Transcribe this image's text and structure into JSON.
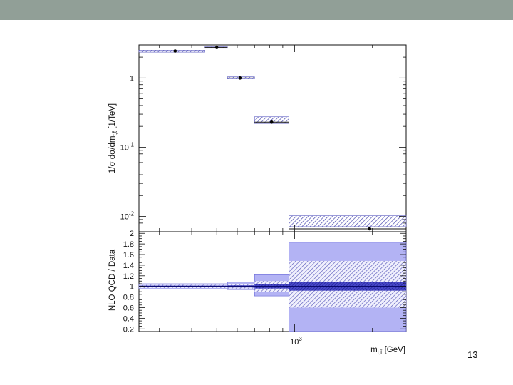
{
  "slide": {
    "number": "13"
  },
  "colors": {
    "header_bar": "#919f97",
    "band_fill": "#7777ee",
    "band_dark": "#1a1a8c",
    "hatch": "#4a4ab0"
  },
  "chart_data": [
    {
      "type": "scatter",
      "panel": "top",
      "xlabel_text": "m",
      "xlabel_sub": "t,t̄",
      "xlabel_unit": " [GeV]",
      "ylabel": "1/σ dσ/dm_{t,t̄} [1/TeV]",
      "ylabel_parts": {
        "pre": "1/σ dσ/dm",
        "sub": "t,t̄",
        "post": " [1/TeV]"
      },
      "xscale": "log",
      "xlim": [
        250,
        2700
      ],
      "yscale": "log",
      "ylim": [
        0.006,
        3.0
      ],
      "x_tick_labels": [
        {
          "value": 1000,
          "base": "10",
          "exp": "3"
        }
      ],
      "y_tick_labels": [
        {
          "value": 1,
          "base": "1",
          "exp": ""
        },
        {
          "value": 0.1,
          "base": "10",
          "exp": "-1"
        },
        {
          "value": 0.01,
          "base": "10",
          "exp": "-2"
        }
      ],
      "bins": [
        {
          "lo": 250,
          "hi": 450,
          "x": 345,
          "y": 2.45,
          "band": [
            2.36,
            2.52
          ]
        },
        {
          "lo": 450,
          "hi": 550,
          "x": 500,
          "y": 2.75,
          "band": [
            2.68,
            2.82
          ]
        },
        {
          "lo": 550,
          "hi": 700,
          "x": 615,
          "y": 1.0,
          "band": [
            0.97,
            1.04
          ]
        },
        {
          "lo": 700,
          "hi": 950,
          "x": 815,
          "y": 0.23,
          "band": [
            0.22,
            0.275
          ]
        },
        {
          "lo": 950,
          "hi": 2700,
          "x": 1950,
          "y": 0.0066,
          "band": [
            0.0071,
            0.0102
          ]
        }
      ]
    },
    {
      "type": "bar",
      "panel": "bottom",
      "ylabel": "NLO QCD / Data",
      "ylim": [
        0.15,
        2.03
      ],
      "y_ticks": [
        "0.2",
        "0.4",
        "0.6",
        "0.8",
        "1",
        "1.2",
        "1.4",
        "1.6",
        "1.8",
        "2"
      ],
      "bins": [
        {
          "lo": 250,
          "hi": 550,
          "outer": [
            0.95,
            1.05
          ],
          "middle": [
            0.97,
            1.03
          ],
          "inner": [
            0.985,
            1.015
          ]
        },
        {
          "lo": 550,
          "hi": 700,
          "outer": [
            0.94,
            1.08
          ],
          "middle": [
            0.96,
            1.04
          ],
          "inner": [
            0.98,
            1.02
          ]
        },
        {
          "lo": 700,
          "hi": 950,
          "outer": [
            0.82,
            1.22
          ],
          "middle": [
            0.9,
            1.1
          ],
          "inner": [
            0.96,
            1.04
          ]
        },
        {
          "lo": 950,
          "hi": 2700,
          "outer": [
            0.15,
            1.83
          ],
          "middle": [
            0.6,
            1.48
          ],
          "inner": [
            0.92,
            1.08
          ]
        }
      ]
    }
  ]
}
